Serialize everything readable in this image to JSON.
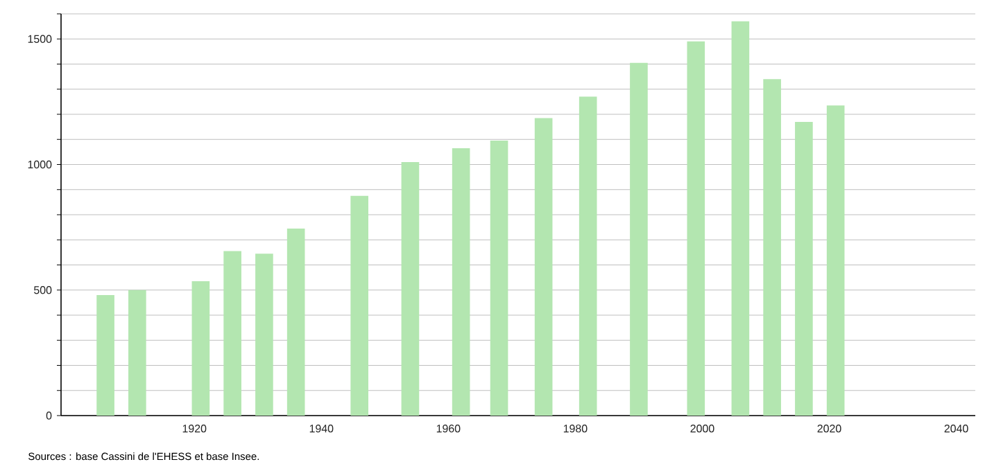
{
  "chart_data": {
    "type": "bar",
    "x": [
      1906,
      1911,
      1921,
      1926,
      1931,
      1936,
      1946,
      1954,
      1962,
      1968,
      1975,
      1982,
      1990,
      1999,
      2006,
      2011,
      2016,
      2021
    ],
    "values": [
      480,
      500,
      535,
      655,
      645,
      745,
      875,
      1010,
      1065,
      1095,
      1185,
      1270,
      1405,
      1490,
      1570,
      1340,
      1170,
      1235
    ],
    "color": "#b3e6b0",
    "xlim": [
      1899,
      2043
    ],
    "xticks": [
      1920,
      1940,
      1960,
      1980,
      2000,
      2020,
      2040
    ],
    "ylim": [
      0,
      1600
    ],
    "yticks": [
      0,
      {
        "value": 100,
        "label": null
      },
      {
        "value": 200,
        "label": null
      },
      {
        "value": 300,
        "label": null
      },
      {
        "value": 400,
        "label": null
      },
      500,
      {
        "value": 600,
        "label": null
      },
      {
        "value": 700,
        "label": null
      },
      {
        "value": 800,
        "label": null
      },
      {
        "value": 900,
        "label": null
      },
      1000,
      {
        "value": 1100,
        "label": null
      },
      {
        "value": 1200,
        "label": null
      },
      {
        "value": 1300,
        "label": null
      },
      {
        "value": 1400,
        "label": null
      },
      1500,
      {
        "value": 1600,
        "label": null
      }
    ],
    "grid": "y",
    "annotations": [
      "Sources : base Cassini de l'EHESS et base Insee."
    ]
  }
}
